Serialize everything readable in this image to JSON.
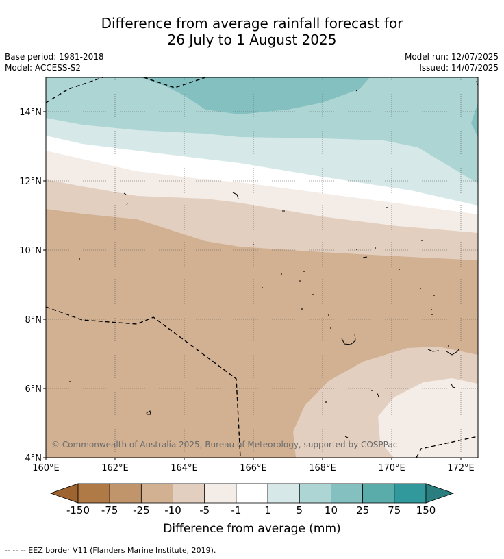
{
  "title_line1": "Difference from average rainfall forecast for",
  "title_line2": "26 July to 1 August 2025",
  "base_period": "Base period: 1981-2018",
  "model": "Model: ACCESS-S2",
  "model_run": "Model run: 12/07/2025",
  "issued": "Issued: 14/07/2025",
  "copyright": "© Commonwealth of Australia 2025, Bureau of Meteorology, supported by COSPPac",
  "lat_ticks": [
    "14°N",
    "12°N",
    "10°N",
    "8°N",
    "6°N",
    "4°N"
  ],
  "lon_ticks": [
    "160°E",
    "162°E",
    "164°E",
    "166°E",
    "168°E",
    "170°E",
    "172°E"
  ],
  "colorbar": {
    "title": "Difference from average (mm)",
    "labels": [
      "-150",
      "-75",
      "-25",
      "-10",
      "-5",
      "-1",
      "1",
      "5",
      "10",
      "25",
      "75",
      "150"
    ],
    "colors": [
      "#9e6430",
      "#b07a46",
      "#c1956b",
      "#d2b193",
      "#e3cfbf",
      "#f4ece6",
      "#ffffff",
      "#d6e9e8",
      "#add5d4",
      "#84c0bf",
      "#5aacab",
      "#31999b",
      "#2a7e7f"
    ]
  },
  "footnote": "--  --  -- EEZ border V11 (Flanders Marine Institute, 2019)."
}
